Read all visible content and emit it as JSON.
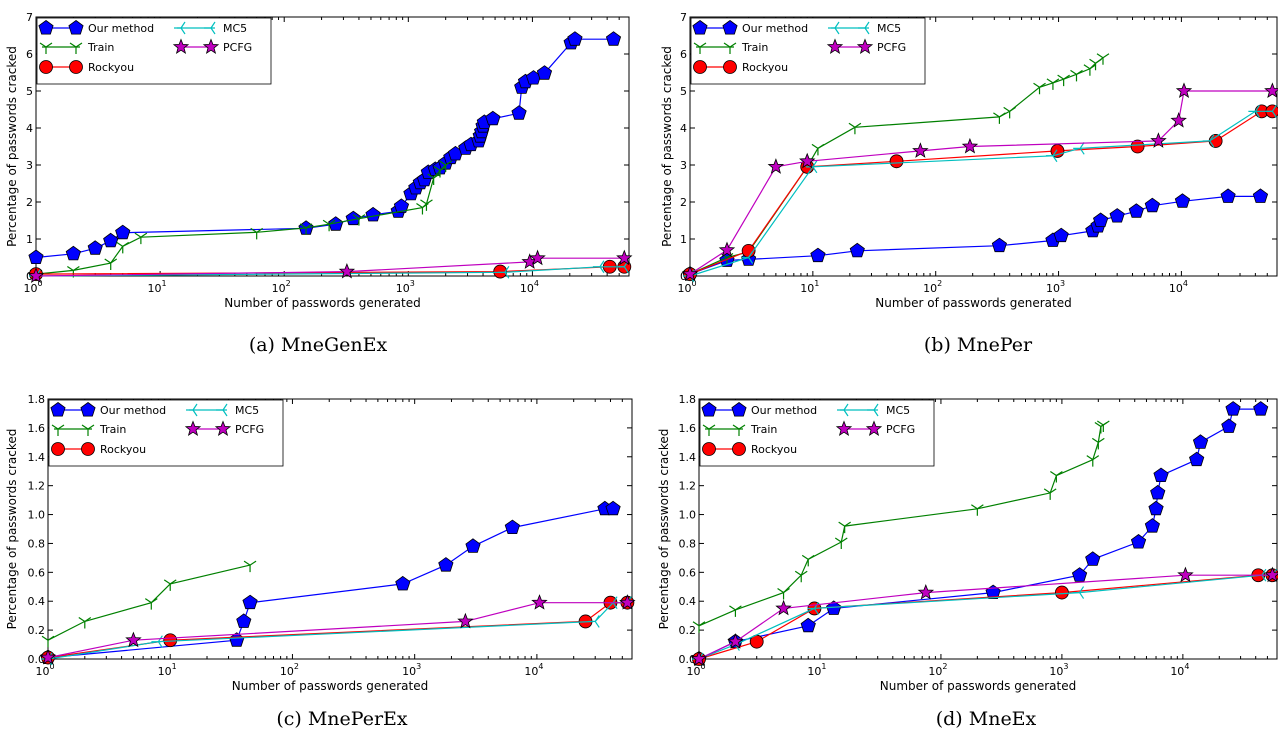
{
  "chart_data": [
    {
      "type": "line",
      "caption": "(a) MneGenEx",
      "xlabel": "Number of passwords generated",
      "ylabel": "Percentage of passwords cracked",
      "xscale": "log",
      "xlim": [
        1,
        60000
      ],
      "ylim": [
        0,
        7
      ],
      "yticks": [
        "0",
        "1",
        "2",
        "3",
        "4",
        "5",
        "6",
        "7"
      ],
      "xticks": [
        [
          "10",
          "0"
        ],
        [
          "10",
          "1"
        ],
        [
          "10",
          "2"
        ],
        [
          "10",
          "3"
        ],
        [
          "10",
          "4"
        ]
      ],
      "legend": {
        "position": "top-left"
      },
      "series": [
        {
          "name": "Our method",
          "color": "#0000ff",
          "marker": "pentagon",
          "x": [
            1,
            2,
            3,
            4,
            5,
            150,
            260,
            360,
            520,
            830,
            880,
            1050,
            1150,
            1250,
            1350,
            1450,
            1650,
            1800,
            2000,
            2200,
            2400,
            2900,
            3200,
            3700,
            3800,
            3900,
            4000,
            4100,
            4800,
            7800,
            8200,
            8800,
            10200,
            12500,
            20500,
            22000,
            45000
          ],
          "y": [
            0.5,
            0.6,
            0.75,
            0.95,
            1.17,
            1.29,
            1.4,
            1.55,
            1.65,
            1.75,
            1.88,
            2.22,
            2.38,
            2.52,
            2.6,
            2.8,
            2.88,
            2.92,
            3.05,
            3.2,
            3.3,
            3.45,
            3.55,
            3.65,
            3.78,
            3.9,
            4.05,
            4.15,
            4.25,
            4.4,
            5.1,
            5.25,
            5.35,
            5.48,
            6.3,
            6.4,
            6.4
          ]
        },
        {
          "name": "Train",
          "color": "#008000",
          "marker": "tri",
          "x": [
            1,
            2,
            4,
            5,
            7,
            60,
            150,
            230,
            400,
            1300,
            1400,
            1600,
            1800,
            2000
          ],
          "y": [
            0.05,
            0.15,
            0.35,
            0.8,
            1.05,
            1.18,
            1.3,
            1.4,
            1.55,
            1.85,
            1.95,
            2.65,
            2.85,
            3.0
          ]
        },
        {
          "name": "Rockyou",
          "color": "#ff0000",
          "marker": "circle",
          "x": [
            1,
            5500,
            42000,
            55000
          ],
          "y": [
            0.05,
            0.12,
            0.25,
            0.25
          ]
        },
        {
          "name": "MC5",
          "color": "#00bfbf",
          "marker": "tri-right",
          "x": [
            1,
            6000,
            35000,
            55000
          ],
          "y": [
            0.0,
            0.1,
            0.25,
            0.25
          ]
        },
        {
          "name": "PCFG",
          "color": "#bf00bf",
          "marker": "star",
          "x": [
            1,
            320,
            9500,
            11000,
            55000
          ],
          "y": [
            0.0,
            0.12,
            0.38,
            0.48,
            0.48
          ]
        }
      ]
    },
    {
      "type": "line",
      "caption": "(b) MnePer",
      "xlabel": "Number of passwords generated",
      "ylabel": "Percentage of passwords cracked",
      "xscale": "log",
      "xlim": [
        1,
        60000
      ],
      "ylim": [
        0,
        7
      ],
      "yticks": [
        "0",
        "1",
        "2",
        "3",
        "4",
        "5",
        "6",
        "7"
      ],
      "xticks": [
        [
          "10",
          "0"
        ],
        [
          "10",
          "1"
        ],
        [
          "10",
          "2"
        ],
        [
          "10",
          "3"
        ],
        [
          "10",
          "4"
        ]
      ],
      "legend": {
        "position": "top-left"
      },
      "series": [
        {
          "name": "Our method",
          "color": "#0000ff",
          "marker": "pentagon",
          "x": [
            1,
            2,
            3,
            11,
            23,
            330,
            900,
            1050,
            1900,
            2100,
            2200,
            3000,
            4300,
            5800,
            10200,
            24000,
            44000
          ],
          "y": [
            0.05,
            0.42,
            0.45,
            0.55,
            0.68,
            0.82,
            0.96,
            1.09,
            1.22,
            1.35,
            1.5,
            1.62,
            1.75,
            1.9,
            2.02,
            2.15,
            2.15
          ]
        },
        {
          "name": "Train",
          "color": "#008000",
          "marker": "tri",
          "x": [
            1,
            2,
            3,
            9,
            11,
            22,
            330,
            400,
            700,
            900,
            1100,
            1400,
            1800,
            2000,
            2300
          ],
          "y": [
            0.05,
            0.5,
            0.65,
            2.95,
            3.45,
            4.02,
            4.3,
            4.45,
            5.1,
            5.22,
            5.32,
            5.45,
            5.6,
            5.75,
            5.9
          ]
        },
        {
          "name": "Rockyou",
          "color": "#ff0000",
          "marker": "circle",
          "x": [
            1,
            3,
            9,
            48,
            980,
            4400,
            19000,
            45000,
            55000
          ],
          "y": [
            0.05,
            0.68,
            2.95,
            3.1,
            3.38,
            3.5,
            3.65,
            4.45,
            4.45
          ]
        },
        {
          "name": "MC5",
          "color": "#00bfbf",
          "marker": "tri-right",
          "x": [
            1,
            3,
            10,
            900,
            1500,
            17000,
            40000,
            55000
          ],
          "y": [
            0.0,
            0.5,
            2.95,
            3.25,
            3.45,
            3.65,
            4.45,
            4.45
          ]
        },
        {
          "name": "PCFG",
          "color": "#bf00bf",
          "marker": "star",
          "x": [
            1,
            2,
            5,
            9,
            75,
            190,
            6500,
            9500,
            10500,
            55000
          ],
          "y": [
            0.05,
            0.7,
            2.95,
            3.1,
            3.38,
            3.5,
            3.65,
            4.2,
            5.0,
            5.0
          ]
        }
      ]
    },
    {
      "type": "line",
      "caption": "(c) MnePerEx",
      "xlabel": "Number of passwords generated",
      "ylabel": "Percentage of passwords cracked",
      "xscale": "log",
      "xlim": [
        1,
        60000
      ],
      "ylim": [
        0,
        1.8
      ],
      "yticks": [
        "0.0",
        "0.2",
        "0.4",
        "0.6",
        "0.8",
        "1.0",
        "1.2",
        "1.4",
        "1.6",
        "1.8"
      ],
      "xticks": [
        [
          "10",
          "0"
        ],
        [
          "10",
          "1"
        ],
        [
          "10",
          "2"
        ],
        [
          "10",
          "3"
        ],
        [
          "10",
          "4"
        ]
      ],
      "legend": {
        "position": "top-left"
      },
      "series": [
        {
          "name": "Our method",
          "color": "#0000ff",
          "marker": "pentagon",
          "x": [
            1,
            35,
            40,
            45,
            800,
            1800,
            3000,
            6300,
            36000,
            42000
          ],
          "y": [
            0.01,
            0.13,
            0.26,
            0.39,
            0.52,
            0.65,
            0.78,
            0.91,
            1.04,
            1.04
          ]
        },
        {
          "name": "Train",
          "color": "#008000",
          "marker": "tri",
          "x": [
            1,
            2,
            7,
            10,
            45
          ],
          "y": [
            0.13,
            0.26,
            0.39,
            0.52,
            0.65
          ]
        },
        {
          "name": "Rockyou",
          "color": "#ff0000",
          "marker": "circle",
          "x": [
            1,
            10,
            25000,
            40000,
            55000
          ],
          "y": [
            0.01,
            0.13,
            0.26,
            0.39,
            0.39
          ]
        },
        {
          "name": "MC5",
          "color": "#00bfbf",
          "marker": "tri-right",
          "x": [
            1,
            8,
            30000,
            42000,
            55000
          ],
          "y": [
            0.0,
            0.12,
            0.26,
            0.39,
            0.39
          ]
        },
        {
          "name": "PCFG",
          "color": "#bf00bf",
          "marker": "star",
          "x": [
            1,
            5,
            2600,
            10500,
            55000
          ],
          "y": [
            0.01,
            0.13,
            0.26,
            0.39,
            0.39
          ]
        }
      ]
    },
    {
      "type": "line",
      "caption": "(d) MneEx",
      "xlabel": "Number of passwords generated",
      "ylabel": "Percentage of passwords cracked",
      "xscale": "log",
      "xlim": [
        1,
        60000
      ],
      "ylim": [
        0,
        1.8
      ],
      "yticks": [
        "0.0",
        "0.2",
        "0.4",
        "0.6",
        "0.8",
        "1.0",
        "1.2",
        "1.4",
        "1.6",
        "1.8"
      ],
      "xticks": [
        [
          "10",
          "0"
        ],
        [
          "10",
          "1"
        ],
        [
          "10",
          "2"
        ],
        [
          "10",
          "3"
        ],
        [
          "10",
          "4"
        ]
      ],
      "legend": {
        "position": "top-left"
      },
      "series": [
        {
          "name": "Our method",
          "color": "#0000ff",
          "marker": "pentagon",
          "x": [
            1,
            2,
            8,
            13,
            270,
            1400,
            1800,
            4300,
            5600,
            6000,
            6200,
            6600,
            13000,
            14000,
            24000,
            26000,
            44000
          ],
          "y": [
            0.0,
            0.12,
            0.23,
            0.35,
            0.46,
            0.58,
            0.69,
            0.81,
            0.92,
            1.04,
            1.15,
            1.27,
            1.38,
            1.5,
            1.61,
            1.73,
            1.73
          ]
        },
        {
          "name": "Train",
          "color": "#008000",
          "marker": "tri",
          "x": [
            1,
            2,
            5,
            7,
            8,
            15,
            16,
            200,
            800,
            900,
            1800,
            2000,
            2100,
            2200
          ],
          "y": [
            0.23,
            0.34,
            0.46,
            0.58,
            0.69,
            0.81,
            0.92,
            1.04,
            1.15,
            1.27,
            1.38,
            1.5,
            1.61,
            1.62
          ]
        },
        {
          "name": "Rockyou",
          "color": "#ff0000",
          "marker": "circle",
          "x": [
            1,
            3,
            9,
            1000,
            42000,
            55000
          ],
          "y": [
            0.0,
            0.12,
            0.35,
            0.46,
            0.58,
            0.58
          ]
        },
        {
          "name": "MC5",
          "color": "#00bfbf",
          "marker": "tri-right",
          "x": [
            1,
            2,
            9,
            1400,
            45000,
            55000
          ],
          "y": [
            0.0,
            0.1,
            0.35,
            0.46,
            0.58,
            0.58
          ]
        },
        {
          "name": "PCFG",
          "color": "#bf00bf",
          "marker": "star",
          "x": [
            1,
            2,
            5,
            75,
            10500,
            55000
          ],
          "y": [
            0.0,
            0.12,
            0.35,
            0.46,
            0.58,
            0.58
          ]
        }
      ]
    }
  ]
}
